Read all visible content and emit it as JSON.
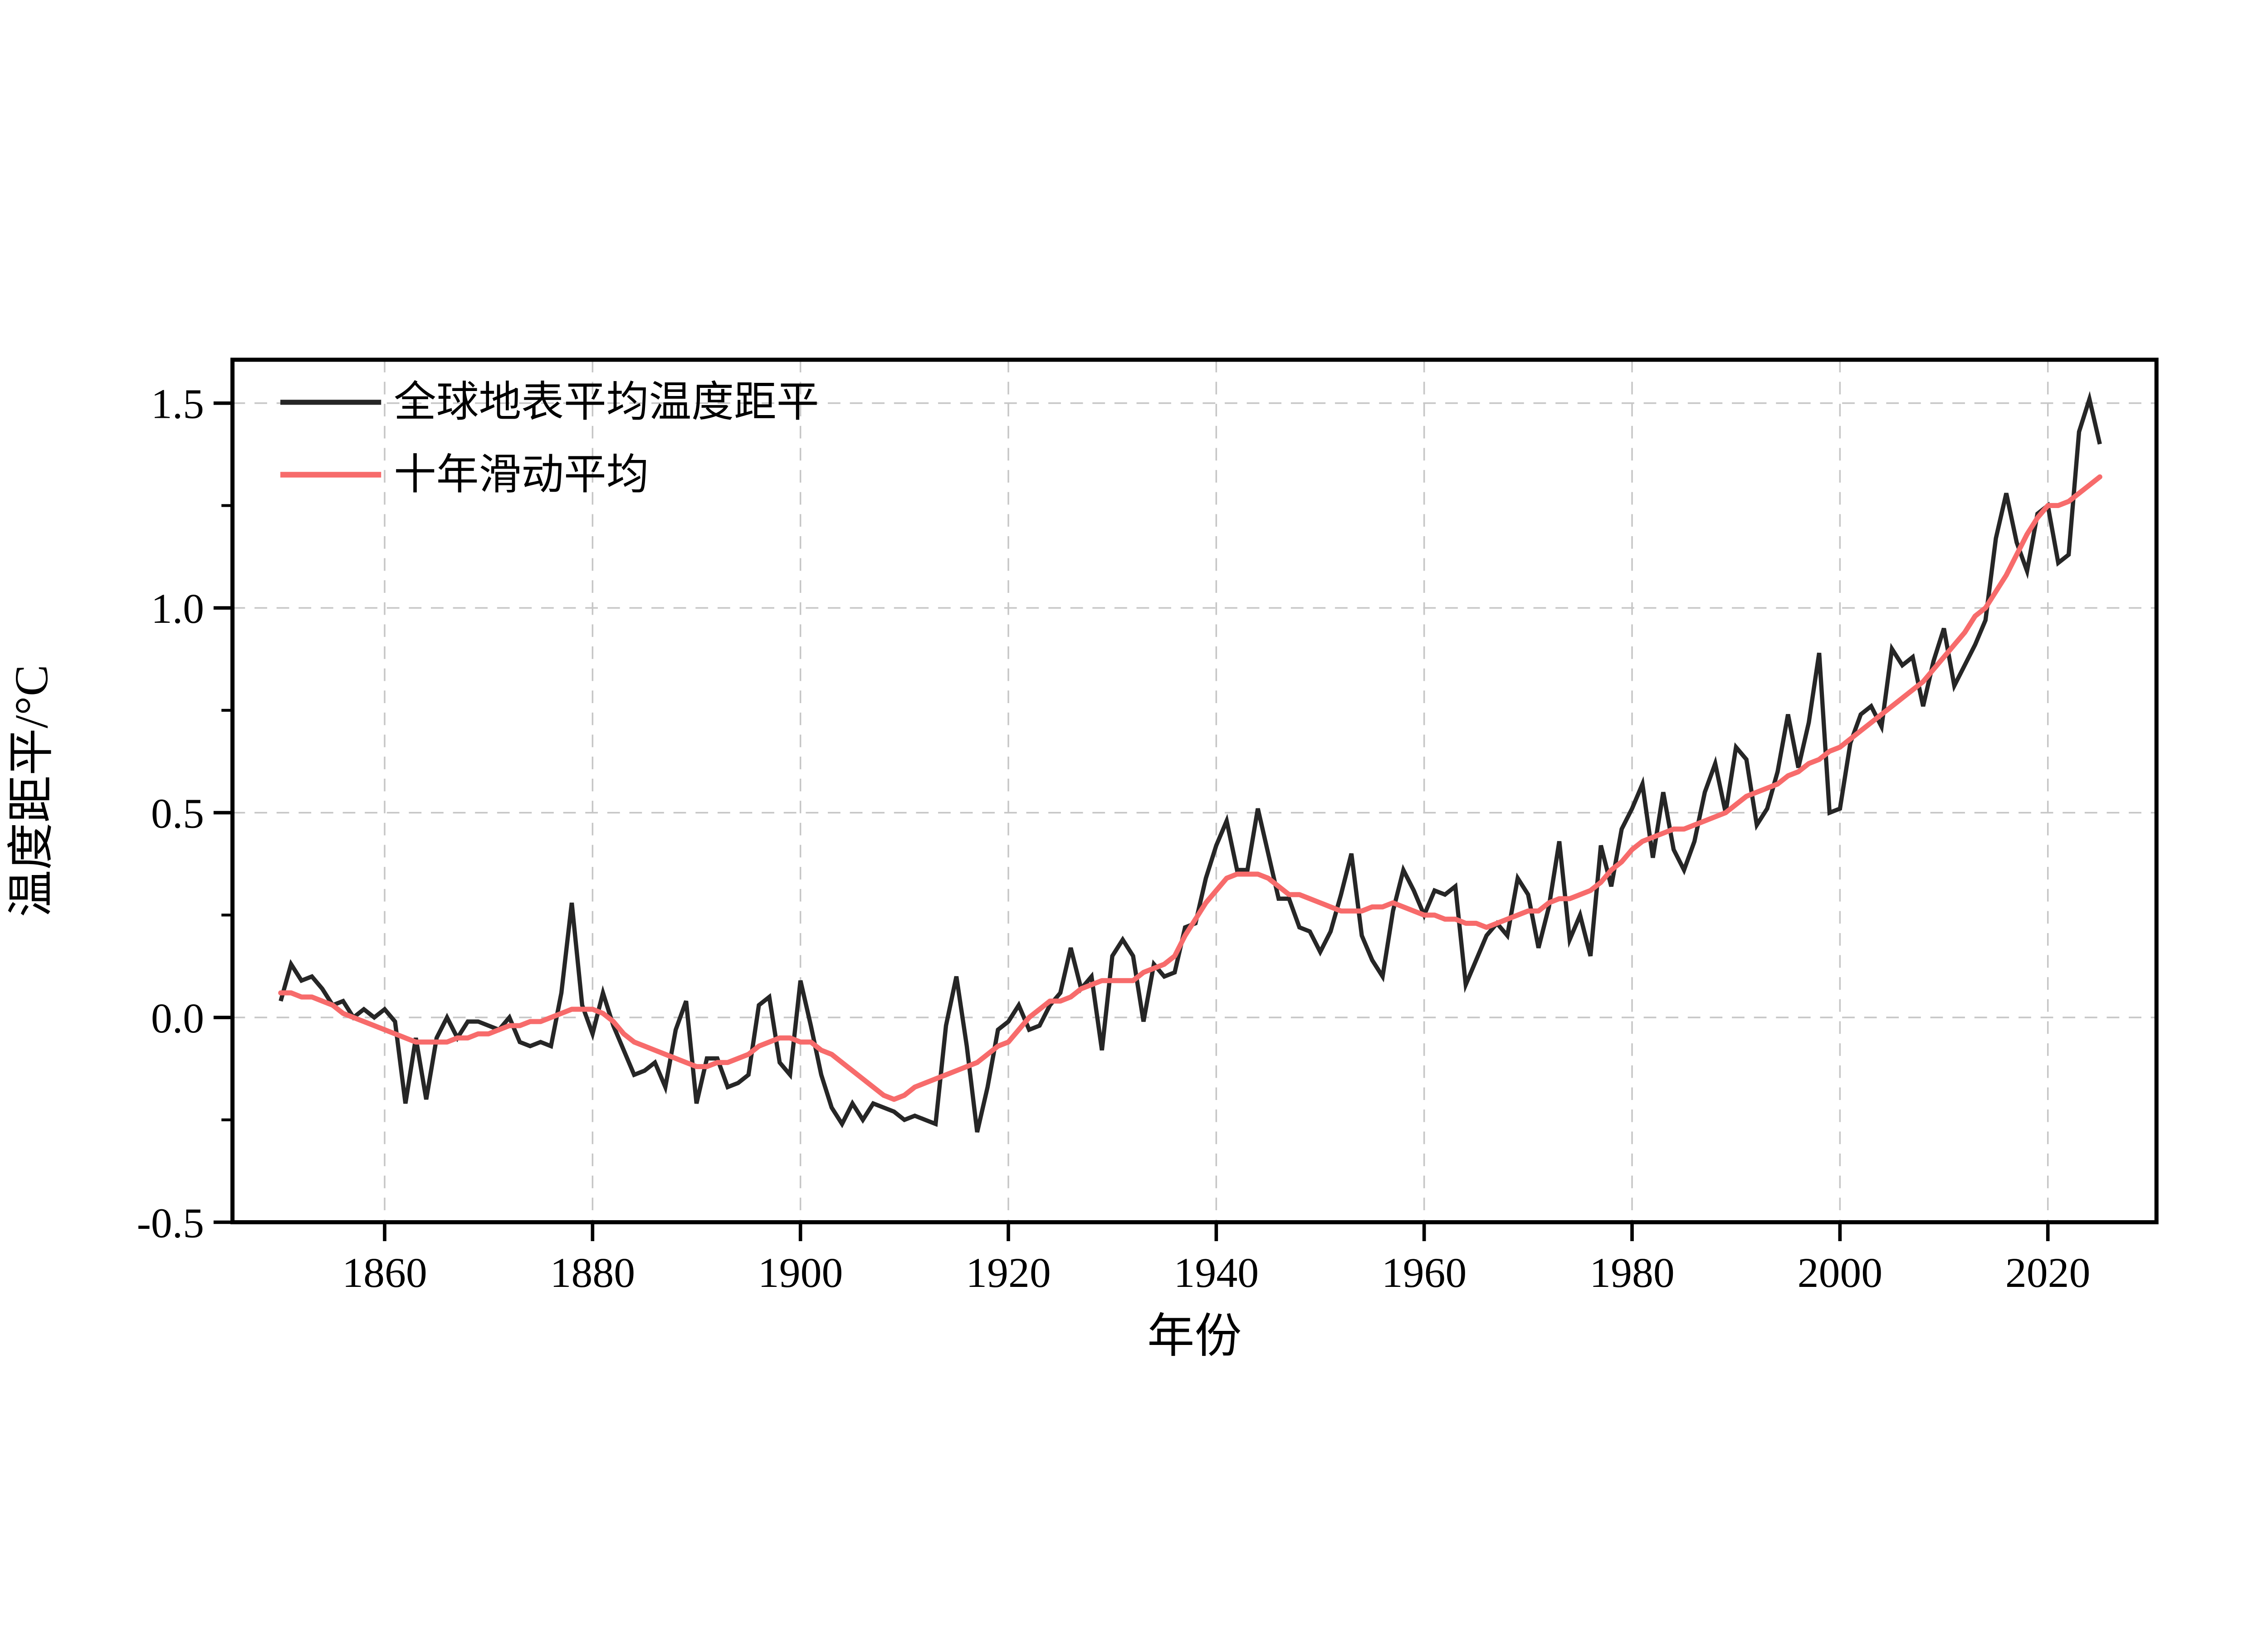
{
  "page": {
    "background": "#ffffff"
  },
  "legend": {
    "position": "top-left-inside",
    "items": [
      {
        "label": "全球地表平均温度距平",
        "color": "#262626",
        "series": "annual"
      },
      {
        "label": "十年滑动平均",
        "color": "#f76b6b",
        "series": "moving-average"
      }
    ]
  },
  "axes": {
    "x_label": "年份",
    "y_label": "温度距平/°C"
  },
  "chart_data": {
    "type": "line",
    "title": "",
    "xlabel": "年份",
    "ylabel": "温度距平/°C",
    "xlim": [
      1845.36,
      2030.45
    ],
    "ylim": [
      -0.5,
      1.606
    ],
    "x_ticks": [
      1860,
      1880,
      1900,
      1920,
      1940,
      1960,
      1980,
      2000,
      2020
    ],
    "x_tick_labels": [
      "1860",
      "1880",
      "1900",
      "1920",
      "1940",
      "1960",
      "1980",
      "2000",
      "2020"
    ],
    "y_ticks": [
      -0.5,
      0.0,
      0.5,
      1.0,
      1.5
    ],
    "y_tick_labels": [
      "-0.5",
      "0.0",
      "0.5",
      "1.0",
      "1.5"
    ],
    "y_minor_ticks": [
      -0.25,
      0.25,
      0.75,
      1.25
    ],
    "grid": {
      "show": true,
      "style": "dashed",
      "color": "#c6c6c6",
      "at_major_ticks": true
    },
    "legend_position": "top-left-inside",
    "x_start": 1850,
    "x_step": 1,
    "x_end": 2025,
    "series": [
      {
        "name": "全球地表平均温度距平",
        "kind": "annual-anomaly",
        "color": "#262626",
        "width": 2.7,
        "values": [
          0.04,
          0.13,
          0.09,
          0.1,
          0.07,
          0.03,
          0.04,
          0.0,
          0.02,
          0.0,
          0.02,
          -0.01,
          -0.21,
          -0.05,
          -0.2,
          -0.05,
          0.0,
          -0.05,
          -0.01,
          -0.01,
          -0.02,
          -0.03,
          0.0,
          -0.06,
          -0.07,
          -0.06,
          -0.07,
          0.06,
          0.28,
          0.03,
          -0.04,
          0.06,
          -0.02,
          -0.08,
          -0.14,
          -0.13,
          -0.11,
          -0.17,
          -0.03,
          0.04,
          -0.21,
          -0.1,
          -0.1,
          -0.17,
          -0.16,
          -0.14,
          0.03,
          0.05,
          -0.11,
          -0.14,
          0.09,
          -0.02,
          -0.14,
          -0.22,
          -0.26,
          -0.21,
          -0.25,
          -0.21,
          -0.22,
          -0.23,
          -0.25,
          -0.24,
          -0.25,
          -0.26,
          -0.02,
          0.1,
          -0.07,
          -0.28,
          -0.17,
          -0.03,
          -0.01,
          0.03,
          -0.03,
          -0.02,
          0.03,
          0.06,
          0.17,
          0.07,
          0.1,
          -0.08,
          0.15,
          0.19,
          0.15,
          -0.01,
          0.13,
          0.1,
          0.11,
          0.22,
          0.23,
          0.34,
          0.42,
          0.48,
          0.36,
          0.36,
          0.51,
          0.4,
          0.29,
          0.29,
          0.22,
          0.21,
          0.16,
          0.21,
          0.3,
          0.4,
          0.2,
          0.14,
          0.1,
          0.26,
          0.36,
          0.31,
          0.25,
          0.31,
          0.3,
          0.32,
          0.08,
          0.14,
          0.2,
          0.23,
          0.2,
          0.34,
          0.3,
          0.17,
          0.27,
          0.43,
          0.19,
          0.25,
          0.15,
          0.42,
          0.32,
          0.46,
          0.51,
          0.57,
          0.39,
          0.55,
          0.41,
          0.36,
          0.43,
          0.55,
          0.62,
          0.5,
          0.66,
          0.63,
          0.47,
          0.51,
          0.6,
          0.74,
          0.61,
          0.72,
          0.89,
          0.5,
          0.51,
          0.67,
          0.74,
          0.76,
          0.71,
          0.9,
          0.86,
          0.88,
          0.76,
          0.87,
          0.95,
          0.81,
          0.86,
          0.91,
          0.97,
          1.17,
          1.28,
          1.16,
          1.09,
          1.23,
          1.25,
          1.11,
          1.13,
          1.43,
          1.51,
          1.4
        ]
      },
      {
        "name": "十年滑动平均",
        "kind": "10yr-moving-average",
        "color": "#f76b6b",
        "width": 3.2,
        "values": [
          0.06,
          0.06,
          0.05,
          0.05,
          0.04,
          0.03,
          0.01,
          0.0,
          -0.01,
          -0.02,
          -0.03,
          -0.04,
          -0.05,
          -0.06,
          -0.06,
          -0.06,
          -0.06,
          -0.05,
          -0.05,
          -0.04,
          -0.04,
          -0.03,
          -0.02,
          -0.02,
          -0.01,
          -0.01,
          0.0,
          0.01,
          0.02,
          0.02,
          0.02,
          0.01,
          -0.01,
          -0.04,
          -0.06,
          -0.07,
          -0.08,
          -0.09,
          -0.1,
          -0.11,
          -0.12,
          -0.12,
          -0.11,
          -0.11,
          -0.1,
          -0.09,
          -0.07,
          -0.06,
          -0.05,
          -0.05,
          -0.06,
          -0.06,
          -0.08,
          -0.09,
          -0.11,
          -0.13,
          -0.15,
          -0.17,
          -0.19,
          -0.2,
          -0.19,
          -0.17,
          -0.16,
          -0.15,
          -0.14,
          -0.13,
          -0.12,
          -0.11,
          -0.09,
          -0.07,
          -0.06,
          -0.03,
          0.0,
          0.02,
          0.04,
          0.04,
          0.05,
          0.07,
          0.08,
          0.09,
          0.09,
          0.09,
          0.09,
          0.11,
          0.12,
          0.13,
          0.15,
          0.2,
          0.24,
          0.28,
          0.31,
          0.34,
          0.35,
          0.35,
          0.35,
          0.34,
          0.32,
          0.3,
          0.3,
          0.29,
          0.28,
          0.27,
          0.26,
          0.26,
          0.26,
          0.27,
          0.27,
          0.28,
          0.27,
          0.26,
          0.25,
          0.25,
          0.24,
          0.24,
          0.23,
          0.23,
          0.22,
          0.23,
          0.24,
          0.25,
          0.26,
          0.26,
          0.28,
          0.29,
          0.29,
          0.3,
          0.31,
          0.33,
          0.36,
          0.38,
          0.41,
          0.43,
          0.44,
          0.45,
          0.46,
          0.46,
          0.47,
          0.48,
          0.49,
          0.5,
          0.52,
          0.54,
          0.55,
          0.56,
          0.57,
          0.59,
          0.6,
          0.62,
          0.63,
          0.65,
          0.66,
          0.68,
          0.7,
          0.72,
          0.74,
          0.76,
          0.78,
          0.8,
          0.82,
          0.85,
          0.88,
          0.91,
          0.94,
          0.98,
          1.0,
          1.04,
          1.08,
          1.13,
          1.18,
          1.22,
          1.25,
          1.25,
          1.26,
          1.28,
          1.3,
          1.32
        ]
      }
    ]
  }
}
